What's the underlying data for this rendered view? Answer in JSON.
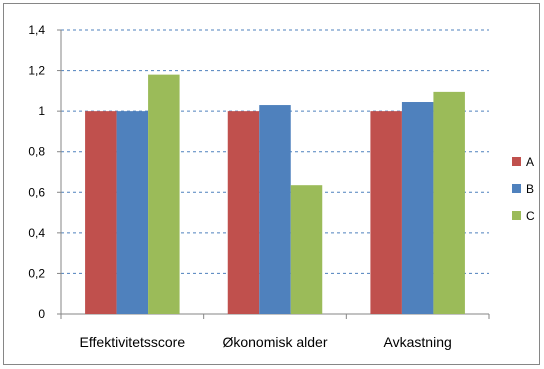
{
  "chart_data": {
    "type": "bar",
    "title": "",
    "xlabel": "",
    "ylabel": "",
    "categories": [
      "Effektivitetsscore",
      "Økonomisk alder",
      "Avkastning"
    ],
    "series": [
      {
        "name": "A",
        "color": "#C0504D",
        "values": [
          1.0,
          1.0,
          1.0
        ]
      },
      {
        "name": "B",
        "color": "#4F81BD",
        "values": [
          1.0,
          1.03,
          1.045
        ]
      },
      {
        "name": "C",
        "color": "#9BBB59",
        "values": [
          1.18,
          0.635,
          1.095
        ]
      }
    ],
    "ylim": [
      0,
      1.4
    ],
    "yticks": [
      "0",
      "0,2",
      "0,4",
      "0,6",
      "0,8",
      "1",
      "1,2",
      "1,4"
    ],
    "grid": "horizontal dashed",
    "legend_position": "right"
  }
}
